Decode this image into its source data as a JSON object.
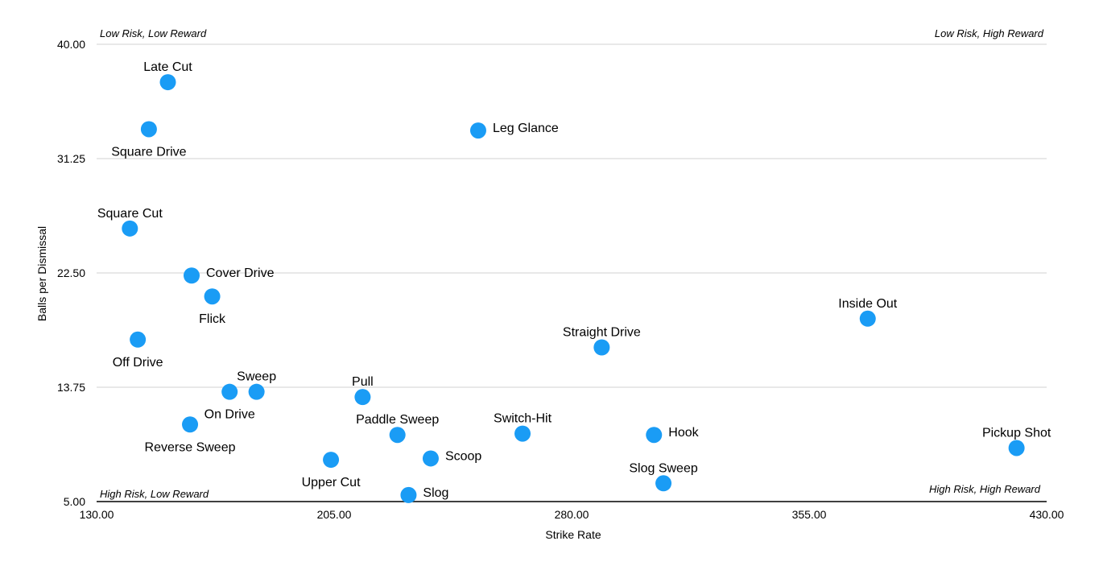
{
  "chart_data": {
    "type": "scatter",
    "title": "",
    "xlabel": "Strike Rate",
    "ylabel": "Balls per Dismissal",
    "xlim": [
      130,
      430
    ],
    "ylim": [
      5,
      40
    ],
    "x_ticks": [
      "130.00",
      "205.00",
      "280.00",
      "355.00",
      "430.00"
    ],
    "y_ticks": [
      "5.00",
      "13.75",
      "22.50",
      "31.25",
      "40.00"
    ],
    "grid": true,
    "color": "#1a9cf5",
    "quadrants": {
      "top_left": "Low Risk, Low Reward",
      "top_right": "Low Risk, High Reward",
      "bottom_left": "High Risk, Low Reward",
      "bottom_right": "High Risk, High Reward"
    },
    "points": [
      {
        "label": "Late Cut",
        "x": 152.5,
        "y": 37.1,
        "pos": "above"
      },
      {
        "label": "Square Drive",
        "x": 146.5,
        "y": 33.5,
        "pos": "below"
      },
      {
        "label": "Leg Glance",
        "x": 250.5,
        "y": 33.4,
        "pos": "right"
      },
      {
        "label": "Square Cut",
        "x": 140.5,
        "y": 25.9,
        "pos": "above"
      },
      {
        "label": "Cover Drive",
        "x": 160.0,
        "y": 22.3,
        "pos": "right"
      },
      {
        "label": "Flick",
        "x": 166.5,
        "y": 20.7,
        "pos": "below"
      },
      {
        "label": "Off Drive",
        "x": 143.0,
        "y": 17.4,
        "pos": "below"
      },
      {
        "label": "Inside Out",
        "x": 373.5,
        "y": 19.0,
        "pos": "above"
      },
      {
        "label": "Straight Drive",
        "x": 289.5,
        "y": 16.8,
        "pos": "above"
      },
      {
        "label": "Sweep",
        "x": 180.5,
        "y": 13.4,
        "pos": "above"
      },
      {
        "label": "On Drive",
        "x": 172.0,
        "y": 13.4,
        "pos": "below"
      },
      {
        "label": "Pull",
        "x": 214.0,
        "y": 13.0,
        "pos": "above"
      },
      {
        "label": "Reverse Sweep",
        "x": 159.5,
        "y": 10.9,
        "pos": "below"
      },
      {
        "label": "Paddle Sweep",
        "x": 225.0,
        "y": 10.1,
        "pos": "above"
      },
      {
        "label": "Switch-Hit",
        "x": 264.5,
        "y": 10.2,
        "pos": "above"
      },
      {
        "label": "Hook",
        "x": 306.0,
        "y": 10.1,
        "pos": "right"
      },
      {
        "label": "Pickup Shot",
        "x": 420.5,
        "y": 9.1,
        "pos": "above"
      },
      {
        "label": "Upper Cut",
        "x": 204.0,
        "y": 8.2,
        "pos": "below"
      },
      {
        "label": "Scoop",
        "x": 235.5,
        "y": 8.3,
        "pos": "right"
      },
      {
        "label": "Slog Sweep",
        "x": 309.0,
        "y": 6.4,
        "pos": "above"
      },
      {
        "label": "Slog",
        "x": 228.5,
        "y": 5.5,
        "pos": "right"
      }
    ]
  }
}
